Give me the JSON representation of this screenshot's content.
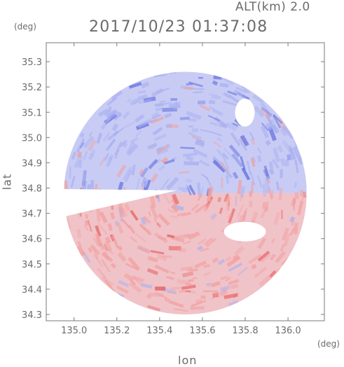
{
  "chart_data": {
    "type": "heatmap",
    "title": "2017/10/23 01:37:08",
    "subtitle": "ALT(km) 2.0",
    "xlabel": "lon",
    "ylabel": "lat",
    "x_unit": "(deg)",
    "y_unit": "(deg)",
    "xlim": [
      134.87,
      136.17
    ],
    "ylim": [
      34.275,
      35.375
    ],
    "x_ticks": [
      135.0,
      135.2,
      135.4,
      135.6,
      135.8,
      136.0
    ],
    "x_tick_labels": [
      "135.0",
      "135.2",
      "135.4",
      "135.6",
      "135.8",
      "136.0"
    ],
    "y_ticks": [
      34.3,
      34.4,
      34.5,
      34.6,
      34.7,
      34.8,
      34.9,
      35.0,
      35.1,
      35.2,
      35.3
    ],
    "y_tick_labels": [
      "34.3",
      "34.4",
      "34.5",
      "34.6",
      "34.7",
      "34.8",
      "34.9",
      "35.0",
      "35.1",
      "35.2",
      "35.3"
    ],
    "radar_center": [
      135.52,
      34.78
    ],
    "radar_range_deg": 0.48,
    "grid": false,
    "colors": {
      "positive": "#f2a0a0",
      "positive_strong": "#e65c5c",
      "negative": "#aab0f0",
      "negative_strong": "#6670e0",
      "neutral": "#eeeef8"
    }
  }
}
